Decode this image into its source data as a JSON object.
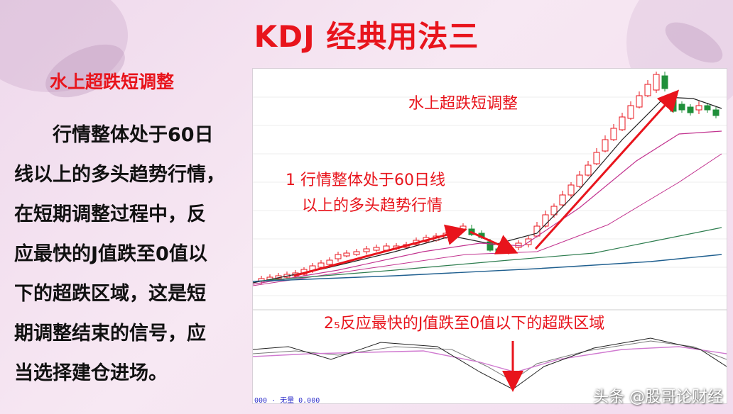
{
  "title": "KDJ 经典用法三",
  "subtitle": "水上超跌短调整",
  "body_lines": [
    "行情整体处于60日",
    "线以上的多头趋势行情，",
    "在短期调整过程中，反",
    "应最快的J值跌至0值以",
    "下的超跌区域，这是短",
    "期调整结束的信号，应",
    "当选择建仓进场。"
  ],
  "chart": {
    "annotation_top": "水上超跌短调整",
    "annotation_1_line1": "1 行情整体处于60日线",
    "annotation_1_line2": "以上的多头趋势行情",
    "annotation_2": "2₅反应最快的J值跌至0值以下的超跌区域",
    "status_bar": "000 · 无量 0.000",
    "colors": {
      "rise": "#e8141c",
      "fall": "#1f8f3a",
      "ma_short": "#222222",
      "ma_mid": "#c2338f",
      "ma_long": "#2e7d4f",
      "ma_60": "#1f5f8f",
      "k_line": "#7a7a7a",
      "d_line": "#d07ad0",
      "j_line": "#222222"
    }
  },
  "watermark": "头条 @股哥论财经"
}
